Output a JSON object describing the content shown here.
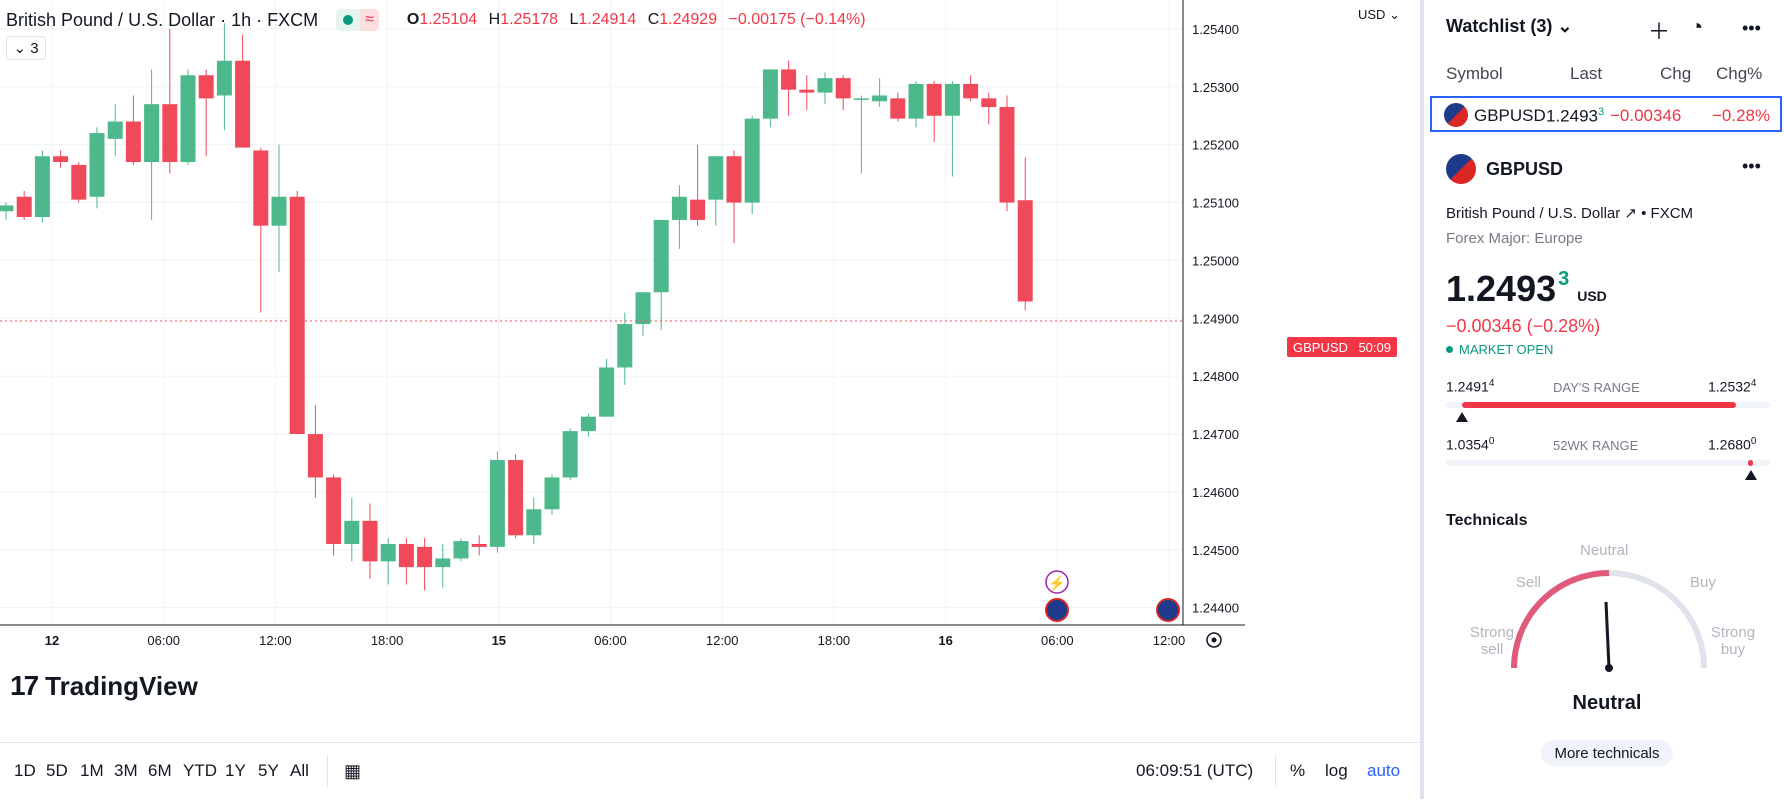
{
  "legend": {
    "title": "British Pound / U.S. Dollar · 1h · FXCM",
    "wave": "≈",
    "ohlc": [
      {
        "k": "O",
        "v": "1.25104"
      },
      {
        "k": "H",
        "v": "1.25178"
      },
      {
        "k": "L",
        "v": "1.24914"
      },
      {
        "k": "C",
        "v": "1.24929"
      }
    ],
    "change": "−0.00175 (−0.14%)",
    "collapse_label": "⌄ 3"
  },
  "axis": {
    "currency": "USD",
    "price_ticks": [
      "1.25400",
      "1.25300",
      "1.25200",
      "1.25100",
      "1.25000",
      "1.24900",
      "1.24800",
      "1.24700",
      "1.24600",
      "1.24500",
      "1.24400"
    ],
    "time_ticks": [
      "12",
      "06:00",
      "12:00",
      "18:00",
      "15",
      "06:00",
      "12:00",
      "18:00",
      "16",
      "06:00",
      "12:00"
    ]
  },
  "price_label": {
    "symbol": "GBPUSD",
    "time": "50:09"
  },
  "logo": {
    "mark": "17",
    "text": "TradingView"
  },
  "bottom": {
    "ranges": [
      "1D",
      "5D",
      "1M",
      "3M",
      "6M",
      "YTD",
      "1Y",
      "5Y",
      "All"
    ],
    "clock": "06:09:51 (UTC)",
    "pct": "%",
    "log": "log",
    "auto": "auto"
  },
  "watchlist": {
    "title": "Watchlist (3) ⌄",
    "columns": [
      "Symbol",
      "Last",
      "Chg",
      "Chg%"
    ],
    "row": {
      "symbol": "GBPUSD",
      "last": "1.2493",
      "last_sup": "3",
      "chg": "−0.00346",
      "chg_pct": "−0.28%"
    }
  },
  "details": {
    "symbol": "GBPUSD",
    "desc": "British Pound / U.S. Dollar ↗ • FXCM",
    "category": "Forex Major: Europe",
    "price": "1.2493",
    "price_sup": "3",
    "currency": "USD",
    "change": "−0.00346 (−0.28%)",
    "market_status": "MARKET OPEN",
    "days_range": {
      "label": "DAY'S RANGE",
      "low": "1.2491",
      "low_sup": "4",
      "high": "1.2532",
      "high_sup": "4",
      "position": 0.05
    },
    "wk52_range": {
      "label": "52WK RANGE",
      "low": "1.0354",
      "low_sup": "0",
      "high": "1.2680",
      "high_sup": "0",
      "position": 0.94
    }
  },
  "technicals": {
    "title": "Technicals",
    "labels": {
      "neutral_top": "Neutral",
      "sell": "Sell",
      "buy": "Buy",
      "strong_sell": "Strong sell",
      "strong_buy": "Strong buy"
    },
    "result": "Neutral",
    "more": "More technicals"
  },
  "colors": {
    "up": "#4db88c",
    "down": "#f04a5a",
    "accent": "#2962ff"
  },
  "chart_data": {
    "type": "candlestick",
    "title": "British Pound / U.S. Dollar · 1h · FXCM",
    "ylim": [
      1.2437,
      1.2545
    ],
    "candles": [
      [
        1.25085,
        1.251,
        1.2507,
        1.25095
      ],
      [
        1.2511,
        1.2512,
        1.2507,
        1.25075
      ],
      [
        1.25075,
        1.2519,
        1.25065,
        1.2518
      ],
      [
        1.2518,
        1.2519,
        1.2516,
        1.2517
      ],
      [
        1.25165,
        1.2517,
        1.251,
        1.25105
      ],
      [
        1.2511,
        1.2523,
        1.2509,
        1.2522
      ],
      [
        1.2521,
        1.2527,
        1.2518,
        1.2524
      ],
      [
        1.2524,
        1.25285,
        1.25165,
        1.2517
      ],
      [
        1.2517,
        1.2533,
        1.2507,
        1.2527
      ],
      [
        1.2527,
        1.254,
        1.2515,
        1.2517
      ],
      [
        1.2517,
        1.2533,
        1.25165,
        1.2532
      ],
      [
        1.2532,
        1.2533,
        1.2518,
        1.2528
      ],
      [
        1.25285,
        1.2541,
        1.25225,
        1.25345
      ],
      [
        1.25345,
        1.2539,
        1.25195,
        1.25195
      ],
      [
        1.2519,
        1.25195,
        1.2491,
        1.2506
      ],
      [
        1.2506,
        1.252,
        1.2498,
        1.2511
      ],
      [
        1.2511,
        1.2512,
        1.247,
        1.247
      ],
      [
        1.247,
        1.2475,
        1.2459,
        1.24625
      ],
      [
        1.24625,
        1.2463,
        1.2449,
        1.2451
      ],
      [
        1.2451,
        1.2459,
        1.2448,
        1.2455
      ],
      [
        1.2455,
        1.2458,
        1.2445,
        1.2448
      ],
      [
        1.2448,
        1.2452,
        1.2444,
        1.2451
      ],
      [
        1.2451,
        1.2452,
        1.2444,
        1.2447
      ],
      [
        1.24505,
        1.2452,
        1.2443,
        1.2447
      ],
      [
        1.2447,
        1.2451,
        1.24435,
        1.24485
      ],
      [
        1.24485,
        1.2452,
        1.2448,
        1.24515
      ],
      [
        1.2451,
        1.24525,
        1.2449,
        1.24505
      ],
      [
        1.24505,
        1.2467,
        1.24495,
        1.24655
      ],
      [
        1.24655,
        1.24665,
        1.2452,
        1.24525
      ],
      [
        1.24525,
        1.2459,
        1.2451,
        1.2457
      ],
      [
        1.2457,
        1.2463,
        1.2456,
        1.24625
      ],
      [
        1.24625,
        1.2471,
        1.2462,
        1.24705
      ],
      [
        1.24705,
        1.24735,
        1.24695,
        1.2473
      ],
      [
        1.2473,
        1.2483,
        1.2473,
        1.24815
      ],
      [
        1.24815,
        1.2491,
        1.24785,
        1.2489
      ],
      [
        1.2489,
        1.24945,
        1.2487,
        1.24945
      ],
      [
        1.24945,
        1.2507,
        1.2488,
        1.2507
      ],
      [
        1.2507,
        1.2513,
        1.2502,
        1.2511
      ],
      [
        1.25105,
        1.252,
        1.2506,
        1.2507
      ],
      [
        1.25105,
        1.2518,
        1.2506,
        1.2518
      ],
      [
        1.2518,
        1.2519,
        1.2503,
        1.251
      ],
      [
        1.251,
        1.2525,
        1.2508,
        1.25245
      ],
      [
        1.25245,
        1.2533,
        1.2523,
        1.2533
      ],
      [
        1.2533,
        1.25345,
        1.2525,
        1.25295
      ],
      [
        1.25295,
        1.2532,
        1.2526,
        1.2529
      ],
      [
        1.2529,
        1.25325,
        1.2527,
        1.25315
      ],
      [
        1.25315,
        1.2532,
        1.2526,
        1.2528
      ],
      [
        1.2528,
        1.25285,
        1.2515,
        1.2528
      ],
      [
        1.25275,
        1.25315,
        1.25265,
        1.25285
      ],
      [
        1.2528,
        1.2529,
        1.2524,
        1.25245
      ],
      [
        1.25245,
        1.2531,
        1.2523,
        1.25305
      ],
      [
        1.25305,
        1.2531,
        1.25205,
        1.2525
      ],
      [
        1.2525,
        1.2531,
        1.25145,
        1.25305
      ],
      [
        1.25305,
        1.2532,
        1.25275,
        1.2528
      ],
      [
        1.2528,
        1.2529,
        1.25235,
        1.25265
      ],
      [
        1.25265,
        1.25285,
        1.25085,
        1.251
      ],
      [
        1.25104,
        1.25178,
        1.24914,
        1.24929
      ]
    ]
  }
}
